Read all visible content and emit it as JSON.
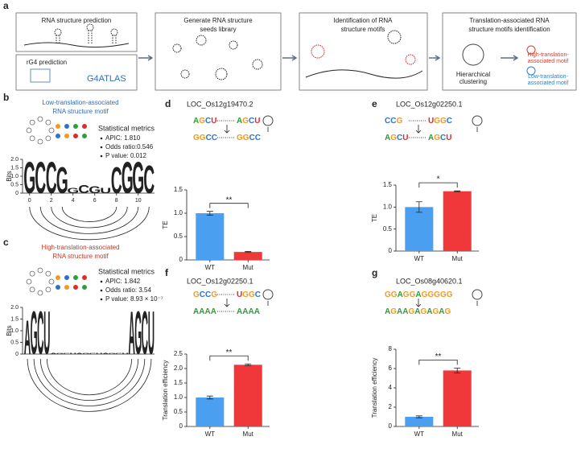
{
  "panel_a": {
    "label": "a",
    "boxes": [
      {
        "lines": [
          "RNA structure prediction"
        ]
      },
      {
        "lines": [
          "Generate RNA structure",
          "seeds library"
        ]
      },
      {
        "lines": [
          "Identification of RNA",
          "structure motifs"
        ]
      },
      {
        "lines": [
          "Translation-associated RNA",
          "structure motifs identification"
        ]
      }
    ],
    "rg4": {
      "title": "rG4 prediction",
      "tool": "G4ATLAS"
    },
    "clustering": [
      "Hierarchical",
      "clustering"
    ],
    "high_motif": [
      "High-translation-",
      "associated motif"
    ],
    "low_motif": [
      "Low-translation-",
      "associated motif"
    ]
  },
  "logos": [
    {
      "label": "b",
      "title": [
        "Low-translation-associated",
        "RNA structure motif"
      ],
      "metrics_title": "Statistical metrics",
      "metrics": [
        "APIC: 1.810",
        "Odds ratio:0.546",
        "P value: 0.012"
      ],
      "ylabel": "Bits",
      "yticks": [
        0,
        0.5,
        {
          "value": 1,
          "label": "1.0"
        },
        1.5,
        {
          "value": 2,
          "label": "2.0"
        }
      ],
      "ylim": [
        0,
        2
      ],
      "xticks": [
        0,
        2,
        4,
        6,
        8,
        10
      ],
      "columns": [
        {
          "letter": "G",
          "bits": 1.9
        },
        {
          "letter": "C",
          "bits": 1.9
        },
        {
          "letter": "C",
          "bits": 1.9
        },
        {
          "letter": "G",
          "bits": 1.6
        },
        {
          "letter": "G",
          "bits": 0.3
        },
        {
          "letter": "C",
          "bits": 0.5
        },
        {
          "letter": "G",
          "bits": 0.4
        },
        {
          "letter": "U",
          "bits": 0.3
        },
        {
          "letter": "C",
          "bits": 1.6
        },
        {
          "letter": "G",
          "bits": 1.9
        },
        {
          "letter": "G",
          "bits": 1.9
        },
        {
          "letter": "C",
          "bits": 1.7
        }
      ]
    },
    {
      "label": "c",
      "title": [
        "High-translation-associated",
        "RNA structure motif"
      ],
      "metrics_title": "Statistical metrics",
      "metrics": [
        "APIC: 1.842",
        "Odds ratio: 3.54",
        "P value: 8.93 × 10⁻⁷"
      ],
      "ylabel": "Bits",
      "yticks": [
        0,
        0.5,
        {
          "value": 1,
          "label": "1.0"
        },
        1.5,
        {
          "value": 2,
          "label": "2.0"
        }
      ],
      "ylim": [
        0,
        2
      ],
      "columns": [
        {
          "letter": "A",
          "bits": 1.5
        },
        {
          "letter": "G",
          "bits": 1.9
        },
        {
          "letter": "C",
          "bits": 1.9
        },
        {
          "letter": "U",
          "bits": 1.9
        },
        {
          "letter": "A",
          "bits": 0.05
        },
        {
          "letter": "G",
          "bits": 0.05
        },
        {
          "letter": "C",
          "bits": 0.05
        },
        {
          "letter": "U",
          "bits": 0.05
        },
        {
          "letter": "A",
          "bits": 0.05
        },
        {
          "letter": "G",
          "bits": 0.05
        },
        {
          "letter": "C",
          "bits": 0.05
        },
        {
          "letter": "U",
          "bits": 0.05
        },
        {
          "letter": "A",
          "bits": 0.05
        },
        {
          "letter": "G",
          "bits": 0.05
        },
        {
          "letter": "C",
          "bits": 0.05
        },
        {
          "letter": "U",
          "bits": 0.05
        },
        {
          "letter": "A",
          "bits": 1.9
        },
        {
          "letter": "G",
          "bits": 1.9
        },
        {
          "letter": "C",
          "bits": 1.9
        },
        {
          "letter": "U",
          "bits": 1.9
        }
      ]
    }
  ],
  "bar_charts": [
    {
      "type": "bar",
      "label": "d",
      "title": "LOC_Os12g19470.2",
      "seq": [
        [
          "AGCU",
          "AGCU"
        ],
        [
          "GGCC",
          "GGCC"
        ]
      ],
      "ylabel": "TE",
      "categories": [
        "WT",
        "Mut"
      ],
      "values": [
        1.0,
        0.17
      ],
      "errors": [
        0.04,
        0.01
      ],
      "colors": [
        "#4a9ff0",
        "#f0383a"
      ],
      "ylim": [
        0,
        1.5
      ],
      "yticks": [
        0,
        0.5,
        {
          "value": 1,
          "label": "1.0"
        },
        1.5
      ],
      "significance": "**"
    },
    {
      "type": "bar",
      "label": "e",
      "title": "LOC_Os12g02250.1",
      "seq": [
        [
          "CCG",
          "UGGC"
        ],
        [
          "AGCU",
          "AGCU"
        ]
      ],
      "ylabel": "TE",
      "categories": [
        "WT",
        "Mut"
      ],
      "values": [
        1.0,
        1.36
      ],
      "errors": [
        0.12,
        0.01
      ],
      "colors": [
        "#4a9ff0",
        "#f0383a"
      ],
      "ylim": [
        0,
        1.5
      ],
      "yticks": [
        0,
        0.5,
        {
          "value": 1,
          "label": "1.0"
        },
        1.5
      ],
      "significance": "*"
    },
    {
      "type": "bar",
      "label": "f",
      "title": "LOC_Os12g02250.1",
      "seq": [
        [
          "GCCG",
          "UGGC"
        ],
        [
          "AAAA",
          "AAAA"
        ]
      ],
      "ylabel": "Translation efficiency",
      "categories": [
        "WT",
        "Mut"
      ],
      "values": [
        1.0,
        2.13
      ],
      "errors": [
        0.05,
        0.03
      ],
      "colors": [
        "#4a9ff0",
        "#f0383a"
      ],
      "ylim": [
        0,
        2.5
      ],
      "yticks": [
        0,
        0.5,
        {
          "value": 1,
          "label": "1.0"
        },
        1.5,
        {
          "value": 2,
          "label": "2.0"
        },
        2.5
      ],
      "significance": "**"
    },
    {
      "type": "bar",
      "label": "g",
      "title": "LOC_Os08g40620.1",
      "seq": [
        [
          "GGAGGAGGGGG"
        ],
        [
          "AGAAGAGAGAG"
        ]
      ],
      "ylabel": "Translation efficiency",
      "categories": [
        "WT",
        "Mut"
      ],
      "values": [
        1.0,
        5.8
      ],
      "errors": [
        0.1,
        0.25
      ],
      "colors": [
        "#4a9ff0",
        "#f0383a"
      ],
      "ylim": [
        0,
        8
      ],
      "yticks": [
        0,
        2,
        4,
        6,
        8
      ],
      "significance": "**"
    }
  ]
}
